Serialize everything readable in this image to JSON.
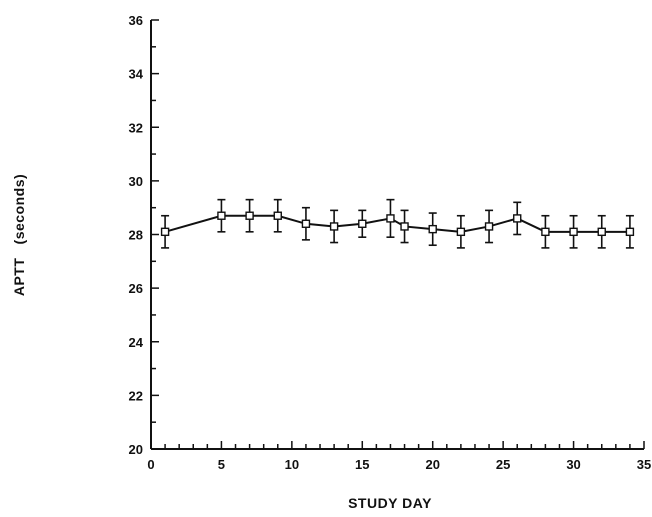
{
  "chart_data": {
    "type": "line",
    "title": "",
    "xlabel": "STUDY DAY",
    "ylabel": "APTT   (seconds)",
    "xlim": [
      0,
      35
    ],
    "ylim": [
      20,
      36
    ],
    "x_ticks": [
      0,
      5,
      10,
      15,
      20,
      25,
      30,
      35
    ],
    "y_ticks": [
      20,
      22,
      24,
      26,
      28,
      30,
      32,
      34,
      36
    ],
    "grid": false,
    "legend": "none",
    "marker": "open-square",
    "series": [
      {
        "x": [
          1,
          5,
          7,
          9,
          11,
          13,
          15,
          17,
          18,
          20,
          22,
          24,
          26,
          28,
          30,
          32,
          34
        ],
        "y": [
          28.1,
          28.7,
          28.7,
          28.7,
          28.4,
          28.3,
          28.4,
          28.6,
          28.3,
          28.2,
          28.1,
          28.3,
          28.6,
          28.1,
          28.1,
          28.1,
          28.1
        ],
        "error": [
          0.6,
          0.6,
          0.6,
          0.6,
          0.6,
          0.6,
          0.5,
          0.7,
          0.6,
          0.6,
          0.6,
          0.6,
          0.6,
          0.6,
          0.6,
          0.6,
          0.6
        ]
      }
    ],
    "colors": {
      "line": "#111111",
      "marker_fill": "#ffffff"
    }
  }
}
